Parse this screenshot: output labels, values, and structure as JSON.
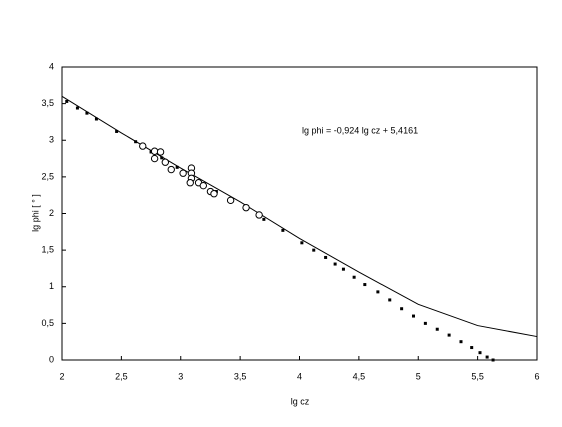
{
  "chart_data": {
    "type": "line",
    "xlabel": "lg cz",
    "ylabel": "lg phi  [ ° ]",
    "annotation": "lg phi = -0,924 lg cz  + 5,4161",
    "xlim": [
      2,
      6
    ],
    "ylim": [
      0,
      4
    ],
    "xticks": [
      2,
      {
        "value": 2.5,
        "label": "2,5"
      },
      3,
      {
        "value": 3.5,
        "label": "3,5"
      },
      4,
      {
        "value": 4.5,
        "label": "4,5"
      },
      5,
      {
        "value": 5.5,
        "label": "5,5"
      },
      6
    ],
    "yticks": [
      0,
      {
        "value": 0.5,
        "label": "0,5"
      },
      1,
      {
        "value": 1.5,
        "label": "1,5"
      },
      2,
      {
        "value": 2.5,
        "label": "2,5"
      },
      3,
      {
        "value": 3.5,
        "label": "3,5"
      },
      4
    ],
    "series": [
      {
        "mark": "line",
        "color": "#000000",
        "x": [
          2,
          2.5,
          3,
          3.5,
          4,
          4.5,
          5,
          5.5,
          6
        ],
        "values": [
          3.6,
          3.1,
          2.62,
          2.16,
          1.66,
          1.2,
          0.76,
          0.47,
          0.32
        ]
      },
      {
        "mark": "dots",
        "color": "#000000",
        "x": [
          2.04,
          2.13,
          2.21,
          2.29,
          2.46,
          2.62,
          2.75,
          2.84,
          2.97,
          3.1,
          3.2,
          3.3,
          3.42,
          3.55,
          3.7,
          3.86,
          4.02,
          4.12,
          4.22,
          4.3,
          4.37,
          4.46,
          4.55,
          4.66,
          4.76,
          4.86,
          4.96,
          5.06,
          5.16,
          5.26,
          5.36,
          5.45,
          5.52,
          5.58,
          5.63
        ],
        "values": [
          3.53,
          3.44,
          3.37,
          3.29,
          3.12,
          2.98,
          2.84,
          2.76,
          2.63,
          2.5,
          2.4,
          2.3,
          2.18,
          2.06,
          1.92,
          1.77,
          1.6,
          1.5,
          1.4,
          1.31,
          1.24,
          1.13,
          1.03,
          0.93,
          0.82,
          0.7,
          0.6,
          0.5,
          0.42,
          0.34,
          0.25,
          0.17,
          0.1,
          0.04,
          0
        ]
      },
      {
        "mark": "circles",
        "color": "#000000",
        "x": [
          2.68,
          2.78,
          2.83,
          2.78,
          2.87,
          2.92,
          3.02,
          3.09,
          3.09,
          3.09,
          3.08,
          3.15,
          3.19,
          3.25,
          3.28,
          3.42,
          3.55,
          3.66
        ],
        "values": [
          2.92,
          2.85,
          2.84,
          2.75,
          2.7,
          2.6,
          2.55,
          2.62,
          2.55,
          2.48,
          2.42,
          2.42,
          2.38,
          2.3,
          2.27,
          2.18,
          2.08,
          1.98
        ]
      }
    ]
  }
}
